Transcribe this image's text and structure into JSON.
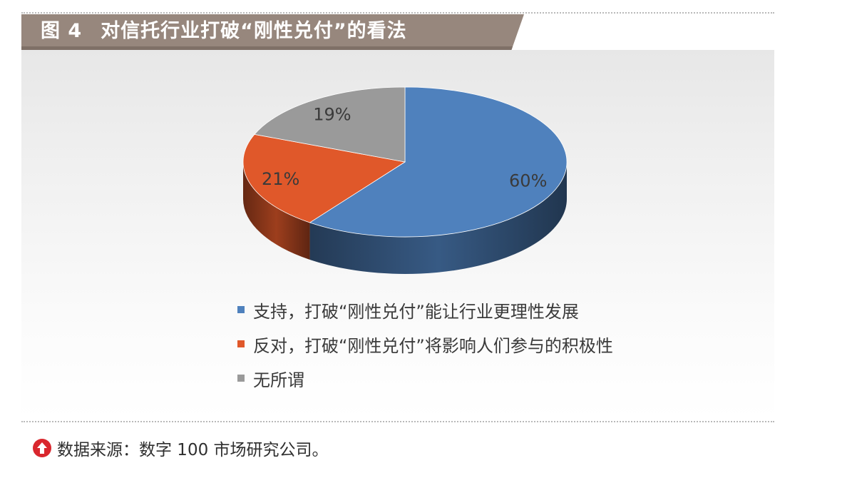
{
  "figure": {
    "number": "图 4",
    "title": "对信托行业打破“刚性兑付”的看法"
  },
  "chart_data": {
    "type": "pie",
    "style": "3d",
    "slices": [
      {
        "label": "支持，打破“刚性兑付”能让行业更理性发展",
        "value": 60,
        "value_label": "60%",
        "color": "#4f81bd"
      },
      {
        "label": "反对，打破“刚性兑付”将影响人们参与的积极性",
        "value": 21,
        "value_label": "21%",
        "color": "#e0582a"
      },
      {
        "label": "无所谓",
        "value": 19,
        "value_label": "19%",
        "color": "#9a9a9a"
      }
    ],
    "legend_position": "bottom"
  },
  "source": {
    "text": "数据来源：数字 100 市场研究公司。",
    "icon": "up-arrow-circle-icon",
    "icon_color": "#d9272e"
  }
}
